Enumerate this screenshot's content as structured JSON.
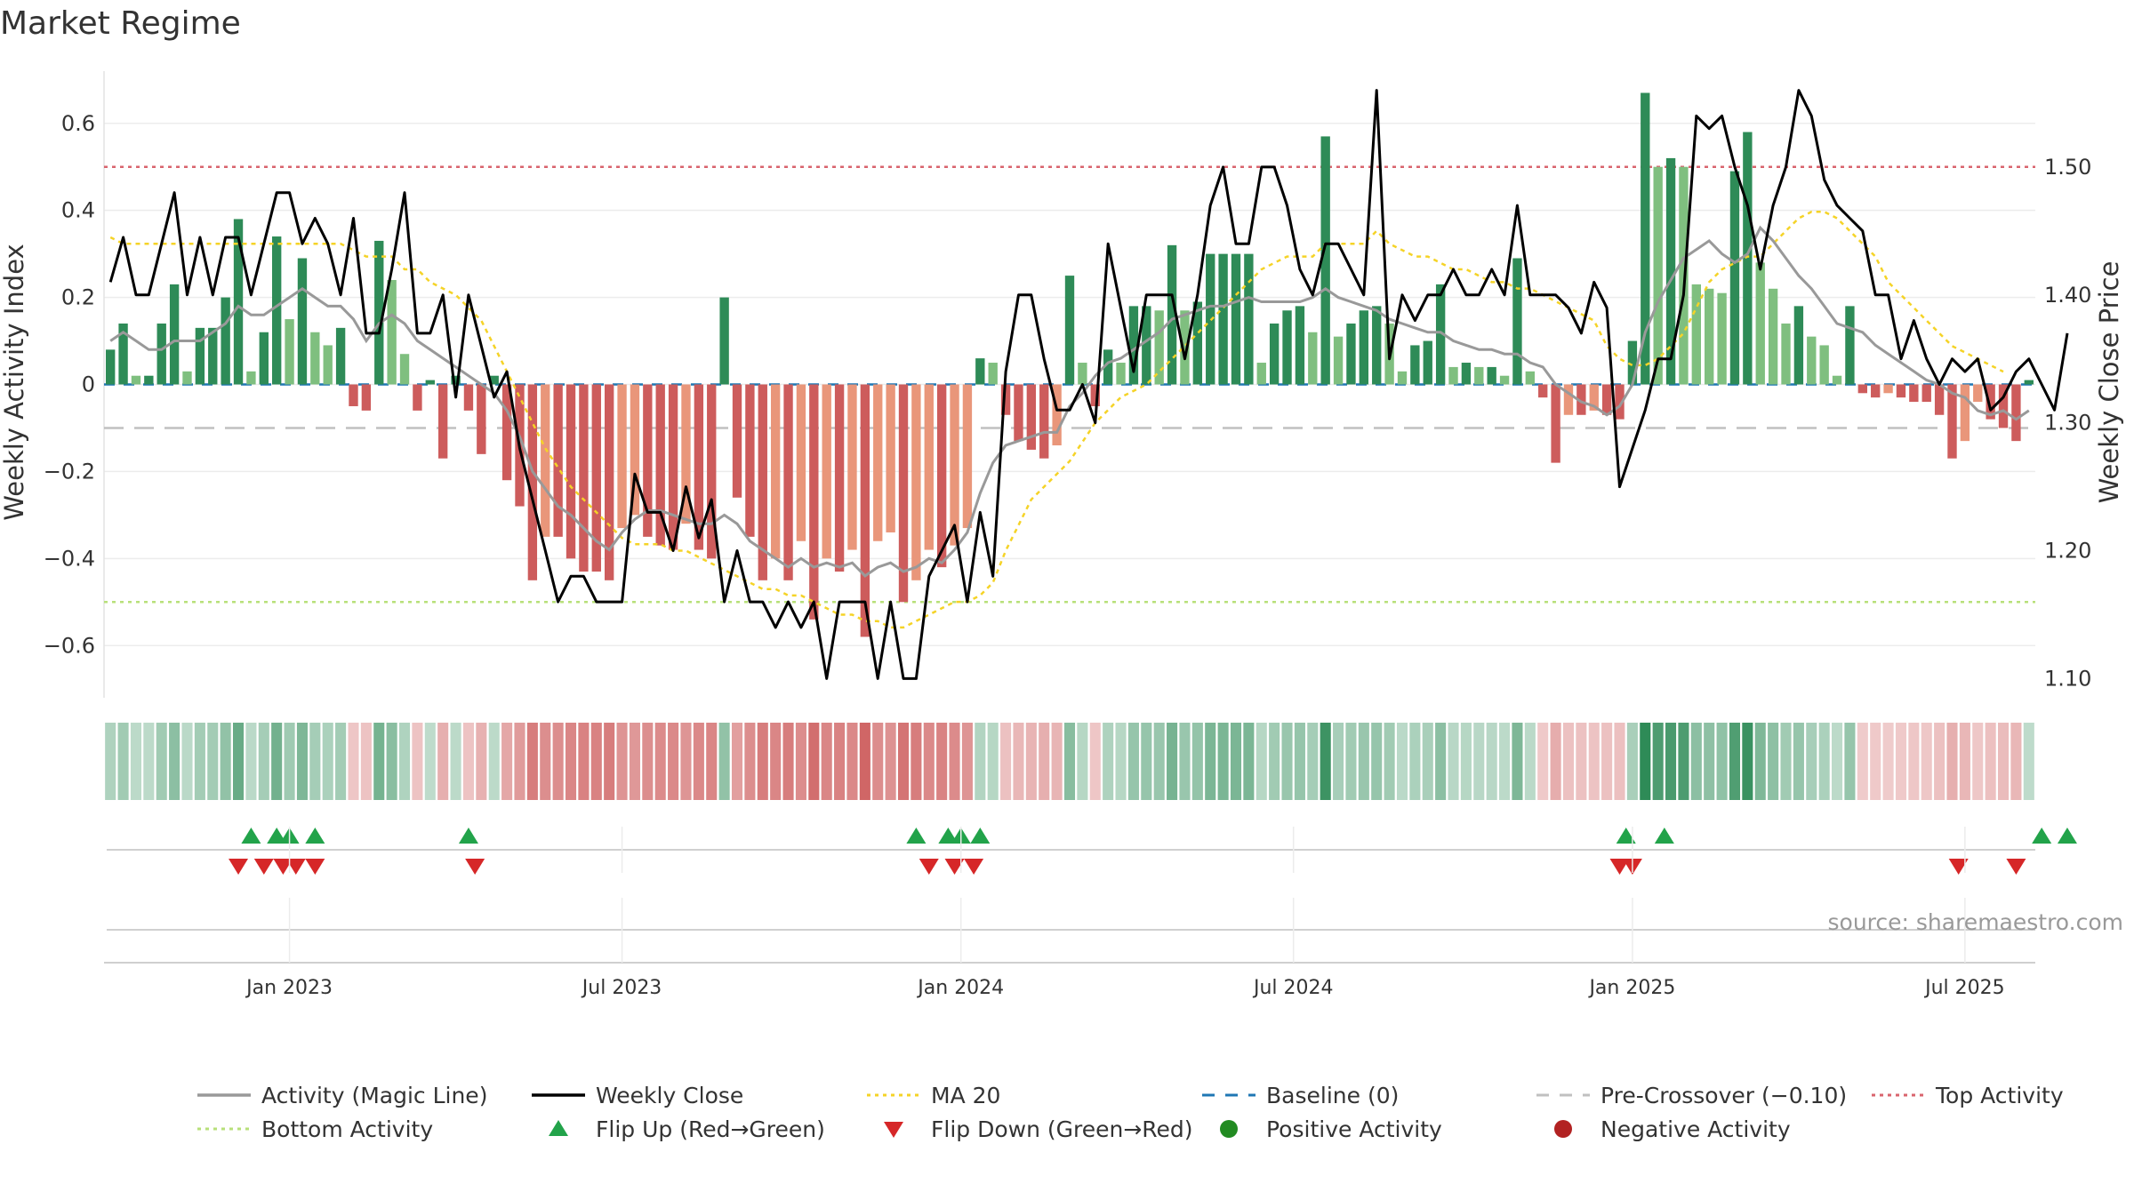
{
  "chart_data": {
    "type": "bar+line",
    "title": "Market Regime",
    "ylabel_left": "Weekly Activity Index",
    "ylabel_right": "Weekly Close Price",
    "ylim_left": [
      -0.72,
      0.72
    ],
    "ylim_right": [
      1.085,
      1.575
    ],
    "left_ticks": [
      0.6,
      0.4,
      0.2,
      0,
      -0.2,
      -0.4,
      -0.6
    ],
    "left_tick_labels": [
      "0.6",
      "0.4",
      "0.2",
      "0",
      "−0.2",
      "−0.4",
      "−0.6"
    ],
    "right_ticks": [
      1.5,
      1.4,
      1.3,
      1.2,
      1.1
    ],
    "right_tick_labels": [
      "1.50",
      "1.40",
      "1.30",
      "1.20",
      "1.10"
    ],
    "x_start": "2022-09-26",
    "x_end": "2025-10-13",
    "date_ticks": [
      {
        "label": "Jan 2023",
        "week": 14
      },
      {
        "label": "Jul 2023",
        "week": 40
      },
      {
        "label": "Jan 2024",
        "week": 66.5
      },
      {
        "label": "Jul 2024",
        "week": 92.5
      },
      {
        "label": "Jan 2025",
        "week": 119
      },
      {
        "label": "Jul 2025",
        "week": 145
      }
    ],
    "activity": [
      0.08,
      0.14,
      0.02,
      0.02,
      0.14,
      0.23,
      0.03,
      0.13,
      0.13,
      0.2,
      0.38,
      0.03,
      0.12,
      0.34,
      0.15,
      0.29,
      0.12,
      0.09,
      0.13,
      -0.05,
      -0.06,
      0.33,
      0.24,
      0.07,
      -0.06,
      0.01,
      -0.17,
      0.02,
      -0.06,
      -0.16,
      0.02,
      -0.22,
      -0.28,
      -0.45,
      -0.35,
      -0.35,
      -0.4,
      -0.43,
      -0.43,
      -0.45,
      -0.33,
      -0.3,
      -0.35,
      -0.37,
      -0.38,
      -0.32,
      -0.38,
      -0.4,
      0.2,
      -0.26,
      -0.35,
      -0.45,
      -0.4,
      -0.45,
      -0.36,
      -0.54,
      -0.4,
      -0.43,
      -0.38,
      -0.58,
      -0.36,
      -0.34,
      -0.5,
      -0.45,
      -0.38,
      -0.42,
      -0.37,
      -0.33,
      0.06,
      0.05,
      -0.07,
      -0.13,
      -0.15,
      -0.17,
      -0.14,
      0.25,
      0.05,
      -0.05,
      0.08,
      0.05,
      0.18,
      0.18,
      0.17,
      0.32,
      0.17,
      0.19,
      0.3,
      0.3,
      0.3,
      0.3,
      0.05,
      0.14,
      0.17,
      0.18,
      0.12,
      0.57,
      0.11,
      0.14,
      0.17,
      0.18,
      0.14,
      0.03,
      0.09,
      0.1,
      0.23,
      0.04,
      0.05,
      0.04,
      0.04,
      0.02,
      0.29,
      0.03,
      -0.03,
      -0.18,
      -0.07,
      -0.07,
      -0.06,
      -0.07,
      -0.08,
      0.1,
      0.67,
      0.5,
      0.52,
      0.5,
      0.23,
      0.22,
      0.21,
      0.49,
      0.58,
      0.28,
      0.22,
      0.14,
      0.18,
      0.11,
      0.09,
      0.02,
      0.18,
      -0.02,
      -0.03,
      -0.02,
      -0.03,
      -0.04,
      -0.04,
      -0.07,
      -0.17,
      -0.13,
      -0.04,
      -0.08,
      -0.1,
      -0.13,
      0.01
    ],
    "magic_line": [
      0.1,
      0.12,
      0.1,
      0.08,
      0.08,
      0.1,
      0.1,
      0.1,
      0.12,
      0.14,
      0.18,
      0.16,
      0.16,
      0.18,
      0.2,
      0.22,
      0.2,
      0.18,
      0.18,
      0.15,
      0.1,
      0.14,
      0.16,
      0.14,
      0.1,
      0.08,
      0.06,
      0.04,
      0.02,
      0,
      -0.02,
      -0.06,
      -0.12,
      -0.2,
      -0.24,
      -0.28,
      -0.3,
      -0.33,
      -0.36,
      -0.38,
      -0.34,
      -0.31,
      -0.29,
      -0.29,
      -0.3,
      -0.31,
      -0.32,
      -0.32,
      -0.3,
      -0.32,
      -0.36,
      -0.38,
      -0.4,
      -0.42,
      -0.4,
      -0.42,
      -0.41,
      -0.42,
      -0.41,
      -0.44,
      -0.42,
      -0.41,
      -0.43,
      -0.42,
      -0.4,
      -0.41,
      -0.38,
      -0.34,
      -0.25,
      -0.18,
      -0.14,
      -0.13,
      -0.12,
      -0.11,
      -0.11,
      -0.05,
      -0.02,
      0.02,
      0.05,
      0.06,
      0.08,
      0.1,
      0.12,
      0.15,
      0.16,
      0.17,
      0.18,
      0.18,
      0.19,
      0.2,
      0.19,
      0.19,
      0.19,
      0.19,
      0.2,
      0.22,
      0.2,
      0.19,
      0.18,
      0.17,
      0.15,
      0.14,
      0.13,
      0.12,
      0.12,
      0.1,
      0.09,
      0.08,
      0.08,
      0.07,
      0.07,
      0.05,
      0.04,
      0.0,
      -0.02,
      -0.04,
      -0.05,
      -0.07,
      -0.05,
      0.0,
      0.12,
      0.19,
      0.24,
      0.29,
      0.31,
      0.33,
      0.3,
      0.28,
      0.3,
      0.36,
      0.33,
      0.29,
      0.25,
      0.22,
      0.18,
      0.14,
      0.13,
      0.12,
      0.09,
      0.07,
      0.05,
      0.03,
      0.01,
      0.0,
      -0.02,
      -0.03,
      -0.06,
      -0.07,
      -0.06,
      -0.08,
      -0.06
    ],
    "weekly_close": [
      1.41,
      1.445,
      1.4,
      1.4,
      1.44,
      1.48,
      1.4,
      1.445,
      1.4,
      1.445,
      1.445,
      1.4,
      1.44,
      1.48,
      1.48,
      1.44,
      1.46,
      1.44,
      1.4,
      1.46,
      1.37,
      1.37,
      1.42,
      1.48,
      1.37,
      1.37,
      1.4,
      1.32,
      1.4,
      1.36,
      1.32,
      1.34,
      1.28,
      1.24,
      1.2,
      1.16,
      1.18,
      1.18,
      1.16,
      1.16,
      1.16,
      1.26,
      1.23,
      1.23,
      1.2,
      1.25,
      1.21,
      1.24,
      1.16,
      1.2,
      1.16,
      1.16,
      1.14,
      1.16,
      1.14,
      1.16,
      1.1,
      1.16,
      1.16,
      1.16,
      1.1,
      1.16,
      1.1,
      1.1,
      1.18,
      1.2,
      1.22,
      1.16,
      1.23,
      1.18,
      1.34,
      1.4,
      1.4,
      1.35,
      1.31,
      1.31,
      1.33,
      1.3,
      1.44,
      1.39,
      1.34,
      1.4,
      1.4,
      1.4,
      1.35,
      1.4,
      1.47,
      1.5,
      1.44,
      1.44,
      1.5,
      1.5,
      1.47,
      1.42,
      1.4,
      1.44,
      1.44,
      1.42,
      1.4,
      1.56,
      1.35,
      1.4,
      1.38,
      1.4,
      1.4,
      1.42,
      1.4,
      1.4,
      1.42,
      1.4,
      1.47,
      1.4,
      1.4,
      1.4,
      1.39,
      1.37,
      1.41,
      1.39,
      1.25,
      1.28,
      1.31,
      1.35,
      1.35,
      1.4,
      1.54,
      1.53,
      1.54,
      1.5,
      1.47,
      1.42,
      1.47,
      1.5,
      1.56,
      1.54,
      1.49,
      1.47,
      1.46,
      1.45,
      1.4,
      1.4,
      1.35,
      1.38,
      1.35,
      1.33,
      1.35,
      1.34,
      1.35,
      1.31,
      1.32,
      1.34,
      1.35,
      1.33,
      1.31,
      1.37
    ],
    "ma20": [
      1.445,
      1.44,
      1.44,
      1.44,
      1.44,
      1.44,
      1.44,
      1.44,
      1.44,
      1.44,
      1.44,
      1.44,
      1.44,
      1.44,
      1.44,
      1.44,
      1.44,
      1.44,
      1.44,
      1.435,
      1.43,
      1.43,
      1.43,
      1.42,
      1.42,
      1.41,
      1.405,
      1.4,
      1.39,
      1.38,
      1.36,
      1.34,
      1.32,
      1.3,
      1.28,
      1.265,
      1.25,
      1.24,
      1.23,
      1.22,
      1.21,
      1.205,
      1.205,
      1.205,
      1.2,
      1.2,
      1.195,
      1.19,
      1.185,
      1.18,
      1.175,
      1.17,
      1.17,
      1.165,
      1.165,
      1.16,
      1.155,
      1.15,
      1.15,
      1.145,
      1.145,
      1.14,
      1.14,
      1.145,
      1.15,
      1.155,
      1.16,
      1.16,
      1.165,
      1.175,
      1.2,
      1.22,
      1.24,
      1.25,
      1.26,
      1.27,
      1.285,
      1.3,
      1.31,
      1.32,
      1.325,
      1.33,
      1.34,
      1.35,
      1.36,
      1.37,
      1.38,
      1.39,
      1.4,
      1.41,
      1.42,
      1.425,
      1.43,
      1.43,
      1.43,
      1.44,
      1.44,
      1.44,
      1.44,
      1.45,
      1.44,
      1.435,
      1.43,
      1.43,
      1.425,
      1.42,
      1.42,
      1.415,
      1.41,
      1.41,
      1.405,
      1.405,
      1.4,
      1.395,
      1.39,
      1.385,
      1.38,
      1.36,
      1.35,
      1.345,
      1.345,
      1.35,
      1.36,
      1.37,
      1.39,
      1.41,
      1.42,
      1.425,
      1.43,
      1.43,
      1.44,
      1.45,
      1.46,
      1.465,
      1.465,
      1.46,
      1.45,
      1.44,
      1.43,
      1.41,
      1.4,
      1.39,
      1.38,
      1.37,
      1.36,
      1.355,
      1.35,
      1.345,
      1.34
    ],
    "reference_lines": {
      "baseline": 0,
      "pre_crossover": -0.1,
      "top_activity": 0.5,
      "bottom_activity": -0.5
    },
    "flip_up_weeks": [
      11,
      13,
      14,
      16,
      28,
      63,
      65.5,
      66.5,
      68,
      118.5,
      121.5,
      151,
      153
    ],
    "flip_down_weeks": [
      10,
      12,
      13.5,
      14.5,
      16,
      28.5,
      64,
      66,
      67.5,
      118,
      119,
      144.5,
      149
    ],
    "colors": {
      "strong_green": "#2e8b57",
      "light_green": "#7fbf7f",
      "strong_red": "#cd5c5c",
      "light_red": "#e9967a",
      "magic_line": "#999999",
      "close_line": "#000000",
      "ma20": "#f5d327",
      "baseline": "#1f77b4",
      "pre_crossover": "#c0c0c0",
      "top_activity": "#d9646e",
      "bottom_activity": "#b8e07a",
      "flip_up": "#22a34a",
      "flip_down": "#d62728",
      "positive_marker": "#228b22",
      "negative_marker": "#b22222"
    },
    "legend": [
      {
        "label": "Activity (Magic Line)",
        "style": "solid",
        "color": "#999999"
      },
      {
        "label": "Weekly Close",
        "style": "solid",
        "color": "#000000"
      },
      {
        "label": "MA 20",
        "style": "dotted",
        "color": "#f5d327"
      },
      {
        "label": "Baseline (0)",
        "style": "dashed",
        "color": "#1f77b4"
      },
      {
        "label": "Pre-Crossover (−0.10)",
        "style": "dashed",
        "color": "#c0c0c0"
      },
      {
        "label": "Top Activity",
        "style": "dotted",
        "color": "#d9646e"
      },
      {
        "label": "Bottom Activity",
        "style": "dotted",
        "color": "#b8e07a"
      },
      {
        "label": "Flip Up (Red→Green)",
        "style": "triangle-up",
        "color": "#22a34a"
      },
      {
        "label": "Flip Down (Green→Red)",
        "style": "triangle-down",
        "color": "#d62728"
      },
      {
        "label": "Positive Activity",
        "style": "circle",
        "color": "#228b22"
      },
      {
        "label": "Negative Activity",
        "style": "circle",
        "color": "#b22222"
      }
    ],
    "source": "source: sharemaestro.com"
  }
}
